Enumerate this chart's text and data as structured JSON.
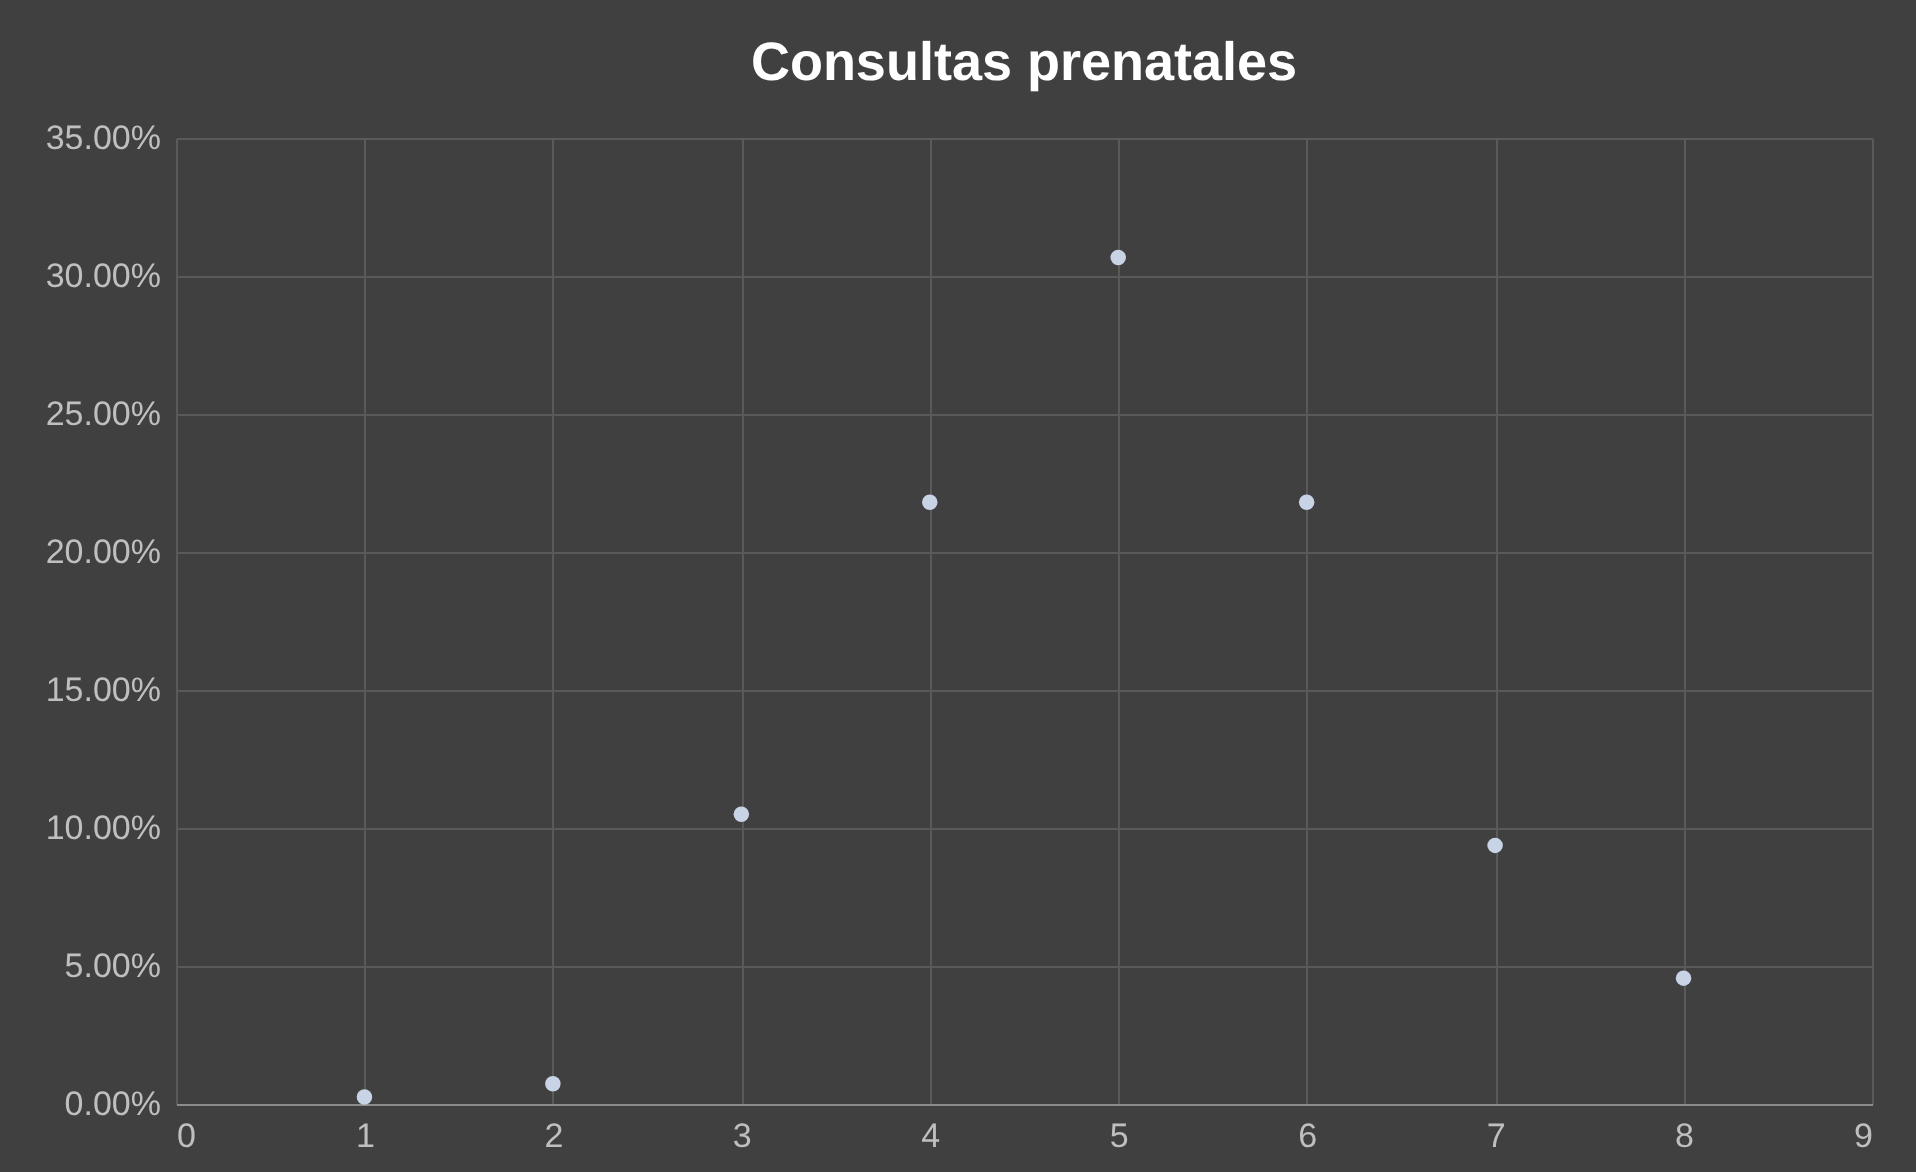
{
  "chart_data": {
    "type": "scatter",
    "title": "Consultas prenatales",
    "x": [
      1,
      2,
      3,
      4,
      5,
      6,
      7,
      8
    ],
    "series": [
      {
        "color": "#c9d3e6",
        "values": [
          0.25,
          0.73,
          10.5,
          21.8,
          30.67,
          21.8,
          9.37,
          4.56
        ]
      }
    ],
    "xlim": [
      0,
      9
    ],
    "xticks": [
      0,
      1,
      2,
      3,
      4,
      5,
      6,
      7,
      8,
      9
    ],
    "ylim": [
      0,
      35
    ],
    "yticks": [
      {
        "value": 0,
        "label": "0.00%"
      },
      {
        "value": 5,
        "label": "5.00%"
      },
      {
        "value": 10,
        "label": "10.00%"
      },
      {
        "value": 15,
        "label": "15.00%"
      },
      {
        "value": 20,
        "label": "20.00%"
      },
      {
        "value": 25,
        "label": "25.00%"
      },
      {
        "value": 30,
        "label": "30.00%"
      },
      {
        "value": 35,
        "label": "35.00%"
      }
    ],
    "grid": true,
    "marker": "circle"
  }
}
